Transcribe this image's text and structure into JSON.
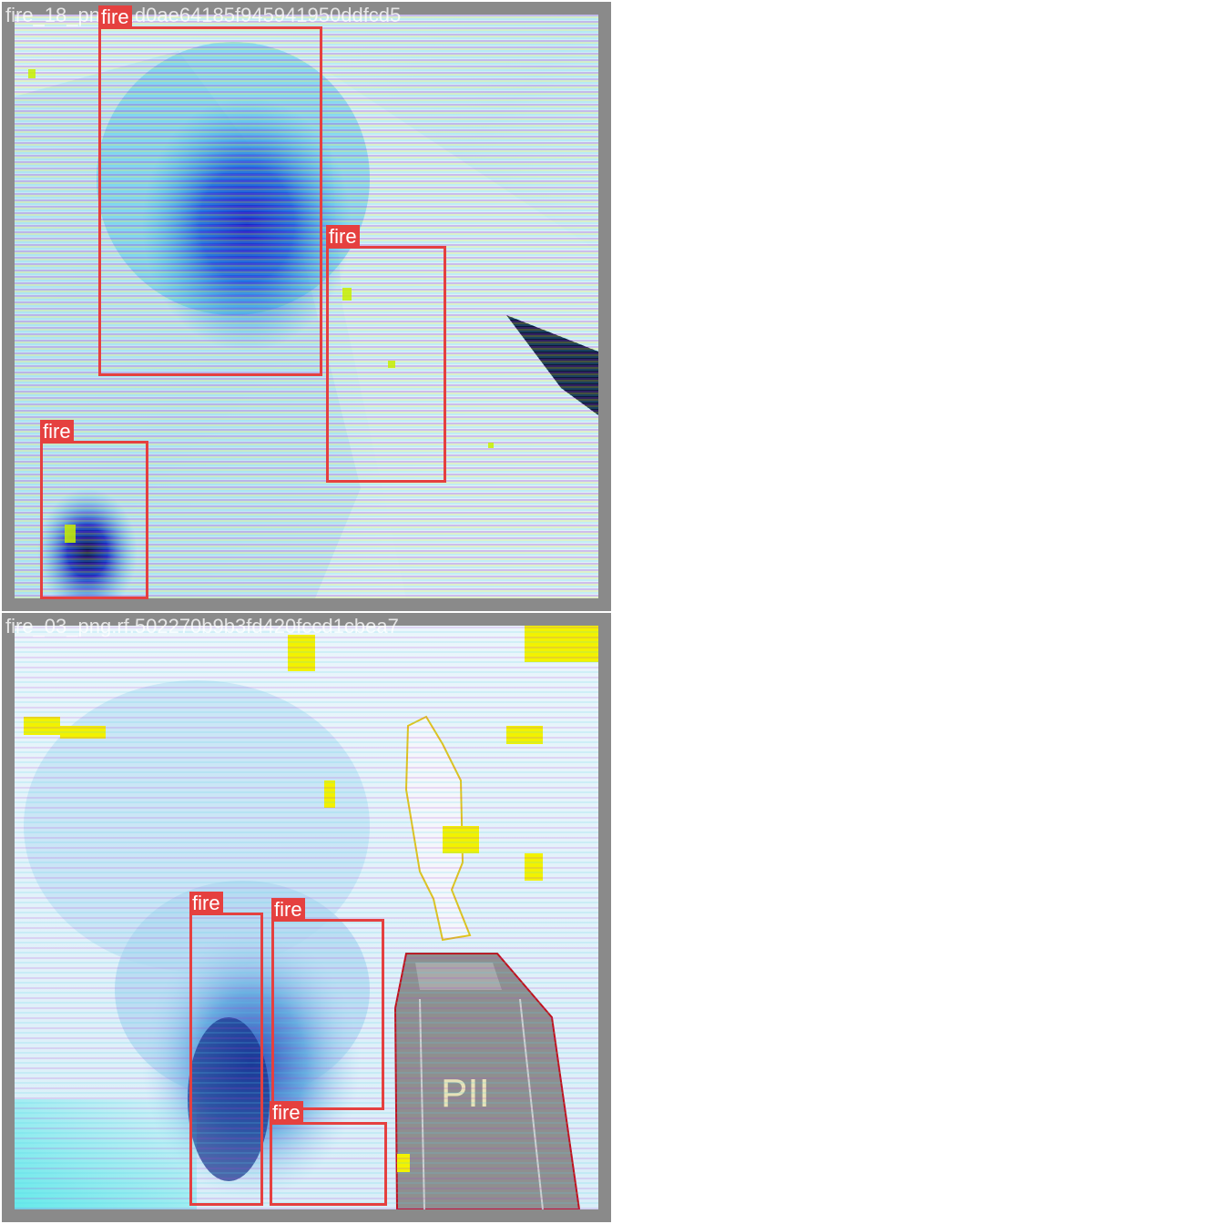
{
  "tiles": [
    {
      "caption": "fire_18_png.rf.d0ae64185f945941950ddfcd5",
      "scene": "inverted-building-smoke",
      "detections": [
        {
          "label": "fire"
        },
        {
          "label": "fire"
        },
        {
          "label": "fire"
        }
      ]
    },
    {
      "caption": "fire_03_png.rf.502270b9b3fd420fccd1cbea7",
      "scene": "inverted-statue-smoke",
      "pedestal_text": "PII",
      "detections": [
        {
          "label": "fire"
        },
        {
          "label": "fire"
        },
        {
          "label": "fire"
        }
      ]
    }
  ],
  "colors": {
    "box": "#e5403f",
    "label_text": "#ffffff",
    "tile_border": "#8a8a8a",
    "page_background": "#ffffff"
  }
}
